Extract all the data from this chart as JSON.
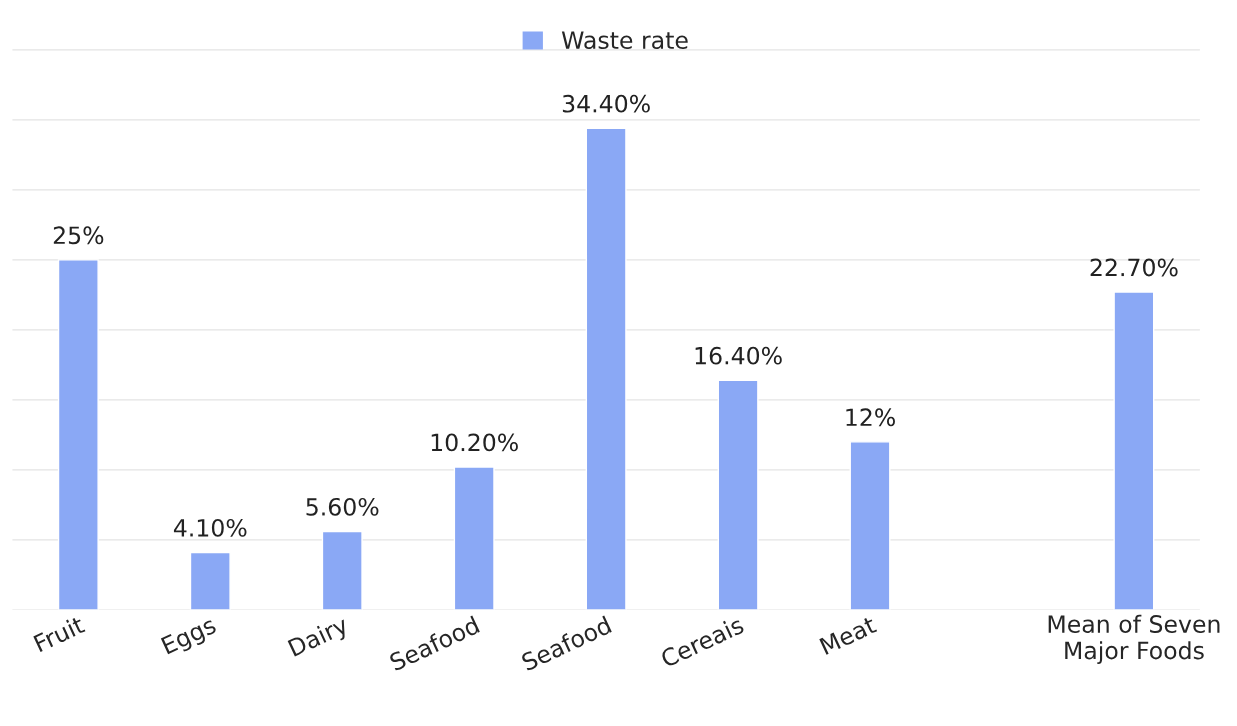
{
  "chart_data": {
    "type": "bar",
    "categories": [
      "Fruit",
      "Eggs",
      "Dairy",
      "Seafood",
      "Seafood",
      "Cereais",
      "Meat",
      null,
      "Mean of Seven\nMajor Foods"
    ],
    "series": [
      {
        "name": "Waste rate",
        "color": "#8aa8f5",
        "values": [
          25,
          4.1,
          5.6,
          10.2,
          34.4,
          16.4,
          12,
          null,
          22.7
        ],
        "value_labels": [
          "25%",
          "4.10%",
          "5.60%",
          "10.20%",
          "34.40%",
          "16.40%",
          "12%",
          null,
          "22.70%"
        ]
      }
    ],
    "grid": "y",
    "legend": "top",
    "tick_labels": "x"
  }
}
